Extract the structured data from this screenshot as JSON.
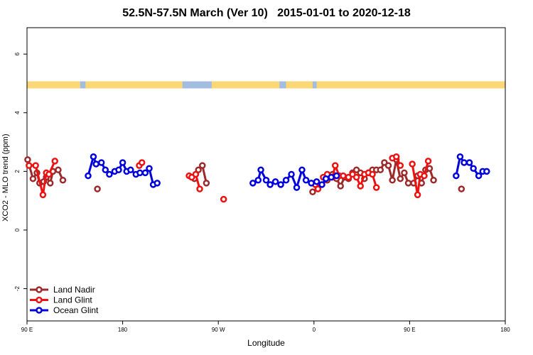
{
  "chart_data": {
    "type": "line",
    "title": "52.5N-57.5N March (Ver 10)   2015-01-01 to 2020-12-18",
    "xlabel": "Longitude",
    "ylabel": "XCO2 - MLO trend (ppm)",
    "xlim": [
      -90,
      270
    ],
    "ylim": [
      -3.1,
      6.9
    ],
    "x_ticks": [
      {
        "value": -90,
        "label": "90 E"
      },
      {
        "value": -18,
        "label": "180"
      },
      {
        "value": 54,
        "label": "90 W"
      },
      {
        "value": 126,
        "label": "0"
      },
      {
        "value": 198,
        "label": "90 E"
      },
      {
        "value": 270,
        "label": "180"
      }
    ],
    "y_ticks": [
      {
        "value": -2,
        "label": "-2"
      },
      {
        "value": 0,
        "label": "0"
      },
      {
        "value": 2,
        "label": "2"
      },
      {
        "value": 4,
        "label": "4"
      },
      {
        "value": 6,
        "label": "6"
      }
    ],
    "surface_band": {
      "y_range": [
        4.83,
        5.07
      ],
      "ocean_color": "#a3bde0",
      "land_color": "#fbd775",
      "land_segments": [
        [
          -90,
          -50
        ],
        [
          -46,
          27
        ],
        [
          49,
          100
        ],
        [
          105,
          125
        ],
        [
          128,
          270
        ]
      ]
    },
    "legend": [
      {
        "label": "Land Nadir",
        "series": "land_nadir"
      },
      {
        "label": "Land Glint",
        "series": "land_glint"
      },
      {
        "label": "Ocean Glint",
        "series": "ocean_glint"
      }
    ],
    "series": [
      {
        "id": "land_nadir",
        "name": "Land Nadir",
        "color": "#9c2a2a",
        "segments": [
          [
            [
              -89.5,
              2.4
            ],
            [
              -85.5,
              1.75
            ],
            [
              -82.5,
              1.95
            ],
            [
              -80.5,
              1.6
            ],
            [
              -77.5,
              1.65
            ],
            [
              -75.5,
              1.8
            ],
            [
              -72.5,
              1.6
            ],
            [
              -70.5,
              2.0
            ],
            [
              -66.5,
              2.05
            ],
            [
              -63,
              1.7
            ]
          ],
          [
            [
              -37,
              1.4
            ]
          ],
          [
            [
              36,
              1.75
            ],
            [
              39,
              2.05
            ],
            [
              42,
              2.2
            ],
            [
              45,
              1.6
            ]
          ],
          [
            [
              125,
              1.3
            ],
            [
              129,
              1.45
            ],
            [
              136,
              1.7
            ],
            [
              140,
              1.9
            ],
            [
              143,
              1.75
            ],
            [
              146,
              1.5
            ],
            [
              149,
              1.8
            ],
            [
              152,
              1.75
            ],
            [
              155,
              1.95
            ],
            [
              158,
              2.05
            ],
            [
              161,
              1.95
            ],
            [
              164,
              1.75
            ],
            [
              167,
              1.95
            ],
            [
              170,
              2.05
            ],
            [
              173,
              2.05
            ],
            [
              176,
              2.05
            ],
            [
              179,
              2.3
            ],
            [
              182,
              2.2
            ],
            [
              185,
              1.7
            ],
            [
              188,
              2.4
            ],
            [
              191,
              1.75
            ],
            [
              194,
              1.95
            ],
            [
              197,
              1.6
            ],
            [
              201,
              1.6
            ],
            [
              204,
              1.85
            ],
            [
              207,
              1.6
            ],
            [
              210,
              2.05
            ],
            [
              213,
              2.1
            ],
            [
              216,
              1.7
            ]
          ],
          [
            [
              237,
              1.4
            ]
          ]
        ]
      },
      {
        "id": "land_glint",
        "name": "Land Glint",
        "color": "#ee1111",
        "segments": [
          [
            [
              -88.5,
              2.2
            ],
            [
              -83.5,
              2.2
            ],
            [
              -78,
              1.2
            ],
            [
              -75.5,
              1.95
            ],
            [
              -73.5,
              1.9
            ],
            [
              -69,
              2.35
            ]
          ],
          [
            [
              -5.5,
              2.2
            ],
            [
              -3.5,
              2.3
            ]
          ],
          [
            [
              32,
              1.85
            ],
            [
              34,
              1.8
            ],
            [
              37,
              1.9
            ],
            [
              40,
              1.4
            ]
          ],
          [
            [
              58,
              1.05
            ]
          ],
          [
            [
              127,
              1.55
            ],
            [
              129,
              1.4
            ]
          ],
          [
            [
              133,
              1.8
            ],
            [
              136,
              1.9
            ],
            [
              140,
              1.8
            ],
            [
              142,
              2.2
            ],
            [
              145,
              1.85
            ],
            [
              148,
              1.85
            ],
            [
              152,
              1.8
            ],
            [
              155,
              1.9
            ],
            [
              158,
              1.8
            ],
            [
              161,
              1.5
            ],
            [
              164,
              1.9
            ],
            [
              167,
              1.95
            ],
            [
              170,
              1.9
            ],
            [
              173,
              1.45
            ]
          ],
          [
            [
              185,
              2.45
            ],
            [
              188,
              2.5
            ],
            [
              191,
              2.2
            ]
          ],
          [
            [
              200,
              2.25
            ],
            [
              204,
              1.2
            ],
            [
              206,
              1.9
            ],
            [
              209,
              1.85
            ],
            [
              212,
              2.35
            ]
          ]
        ]
      },
      {
        "id": "ocean_glint",
        "name": "Ocean Glint",
        "color": "#0000dd",
        "segments": [
          [
            [
              -44,
              1.85
            ],
            [
              -40,
              2.5
            ],
            [
              -38,
              2.25
            ],
            [
              -34,
              2.3
            ],
            [
              -31,
              2.05
            ],
            [
              -28,
              1.9
            ],
            [
              -24,
              2.0
            ],
            [
              -21,
              2.05
            ],
            [
              -18,
              2.3
            ],
            [
              -15,
              2.0
            ],
            [
              -12,
              2.05
            ],
            [
              -8,
              1.9
            ],
            [
              -5,
              1.95
            ],
            [
              -1,
              1.95
            ],
            [
              2,
              2.1
            ],
            [
              5,
              1.55
            ],
            [
              8,
              1.6
            ]
          ],
          [
            [
              80,
              1.6
            ],
            [
              84,
              1.7
            ],
            [
              86,
              2.05
            ],
            [
              90,
              1.7
            ],
            [
              93,
              1.55
            ],
            [
              97,
              1.65
            ],
            [
              101,
              1.55
            ],
            [
              105,
              1.7
            ],
            [
              109,
              1.9
            ],
            [
              113,
              1.45
            ],
            [
              117,
              2.05
            ],
            [
              120,
              1.7
            ],
            [
              124,
              1.6
            ],
            [
              128,
              1.65
            ],
            [
              132,
              1.55
            ],
            [
              135,
              1.75
            ],
            [
              139,
              1.8
            ],
            [
              143,
              1.85
            ]
          ],
          [
            [
              233,
              1.85
            ],
            [
              236,
              2.5
            ],
            [
              239,
              2.3
            ],
            [
              243,
              2.3
            ],
            [
              246,
              2.1
            ],
            [
              250,
              1.85
            ],
            [
              253,
              2.0
            ],
            [
              256,
              2.0
            ]
          ]
        ]
      }
    ]
  }
}
